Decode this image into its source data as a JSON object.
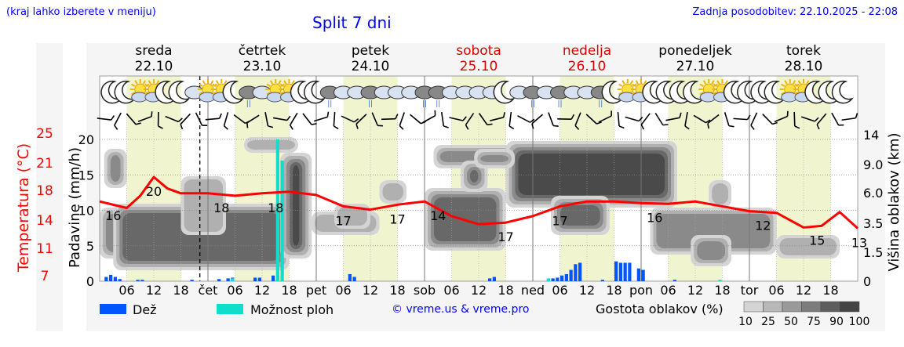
{
  "header": {
    "menu_hint": "(kraj lahko izberete v meniju)",
    "title": "Split 7 dni",
    "updated": "Zadnja posodobitev: 22.10.2025 - 22:08"
  },
  "days": [
    {
      "name": "sreda",
      "date": "22.10",
      "weekend": false
    },
    {
      "name": "četrtek",
      "date": "23.10",
      "weekend": false
    },
    {
      "name": "petek",
      "date": "24.10",
      "weekend": false
    },
    {
      "name": "sobota",
      "date": "25.10",
      "weekend": true
    },
    {
      "name": "nedelja",
      "date": "26.10",
      "weekend": true
    },
    {
      "name": "ponedeljek",
      "date": "27.10",
      "weekend": false
    },
    {
      "name": "torek",
      "date": "28.10",
      "weekend": false
    }
  ],
  "colors": {
    "temperature": "#ff0000",
    "rain": "#0055ff",
    "storm": "#11ddcc",
    "daylight": "#f0f5d0",
    "weekend_text": "#dd0000",
    "link": "#0000ff"
  },
  "legend": {
    "rain": "Dež",
    "storm": "Možnost ploh",
    "credit": "© vreme.us & vreme.pro",
    "density": "Gostota oblakov (%)",
    "density_levels": [
      "10",
      "25",
      "50",
      "75",
      "90",
      "100"
    ]
  },
  "chart_data": {
    "type": "line",
    "x_ticks": [
      "06",
      "12",
      "18",
      "čet",
      "06",
      "12",
      "18",
      "pet",
      "06",
      "12",
      "18",
      "sob",
      "06",
      "12",
      "18",
      "ned",
      "06",
      "12",
      "18",
      "pon",
      "06",
      "12",
      "18",
      "tor",
      "06",
      "12",
      "18"
    ],
    "temperature": {
      "axis_label": "Temperatura (°C)",
      "ticks": [
        "7",
        "11",
        "14",
        "18",
        "21",
        "25"
      ],
      "ylim": [
        7,
        25
      ],
      "points_hours": [
        0,
        6,
        9,
        12,
        15,
        18,
        24,
        30,
        36,
        42,
        48,
        54,
        60,
        66,
        72,
        78,
        84,
        90,
        96,
        102,
        108,
        114,
        120,
        126,
        132,
        138,
        144,
        150,
        156,
        160,
        164,
        168
      ],
      "values": [
        16.8,
        16.0,
        17.5,
        19.8,
        18.4,
        17.8,
        17.8,
        17.5,
        17.8,
        18.0,
        17.6,
        16.2,
        15.8,
        16.4,
        16.8,
        15.0,
        14.0,
        14.2,
        15.0,
        16.2,
        16.8,
        16.8,
        16.6,
        16.5,
        16.8,
        16.2,
        15.6,
        15.4,
        13.6,
        13.8,
        15.5,
        13.5
      ],
      "labels": [
        {
          "hour": 3,
          "text": "16"
        },
        {
          "hour": 12,
          "text": "20"
        },
        {
          "hour": 27,
          "text": "18"
        },
        {
          "hour": 39,
          "text": "18"
        },
        {
          "hour": 54,
          "text": "17"
        },
        {
          "hour": 66,
          "text": "17"
        },
        {
          "hour": 75,
          "text": "14"
        },
        {
          "hour": 90,
          "text": "17"
        },
        {
          "hour": 102,
          "text": "17"
        },
        {
          "hour": 123,
          "text": "16"
        },
        {
          "hour": 147,
          "text": "12"
        },
        {
          "hour": 159,
          "text": "15"
        },
        {
          "hour": 171,
          "text": "13"
        }
      ]
    },
    "precipitation": {
      "axis_label": "Padavine (mm/h)",
      "ticks": [
        "0",
        "5",
        "10",
        "15",
        "20"
      ],
      "ylim": [
        0,
        20
      ],
      "rain": [
        [
          1,
          0.6
        ],
        [
          2,
          0.9
        ],
        [
          3,
          0.6
        ],
        [
          4,
          0.3
        ],
        [
          8,
          0.2
        ],
        [
          9,
          0.2
        ],
        [
          20,
          0.2
        ],
        [
          26,
          0.3
        ],
        [
          28,
          0.4
        ],
        [
          29,
          0.5
        ],
        [
          34,
          0.5
        ],
        [
          35,
          0.5
        ],
        [
          38,
          0.8
        ],
        [
          55,
          1.0
        ],
        [
          56,
          0.6
        ],
        [
          86,
          0.4
        ],
        [
          87,
          0.6
        ],
        [
          99,
          0.2
        ],
        [
          100,
          0.4
        ],
        [
          101,
          0.5
        ],
        [
          102,
          0.8
        ],
        [
          103,
          1.0
        ],
        [
          104,
          1.6
        ],
        [
          105,
          2.4
        ],
        [
          106,
          2.6
        ],
        [
          111,
          0.2
        ],
        [
          114,
          2.8
        ],
        [
          115,
          2.6
        ],
        [
          116,
          2.6
        ],
        [
          117,
          2.6
        ],
        [
          119,
          1.8
        ],
        [
          120,
          1.6
        ],
        [
          127,
          0.2
        ]
      ],
      "storm": [
        [
          29,
          0.4
        ],
        [
          39,
          20.0
        ],
        [
          40,
          17.0
        ],
        [
          99,
          0.4
        ],
        [
          137,
          0.2
        ]
      ]
    },
    "cloud_height": {
      "axis_label": "Višina oblakov (km)",
      "ticks": [
        "0",
        "1.5",
        "3.5",
        "6.0",
        "9.0",
        "14"
      ]
    }
  }
}
